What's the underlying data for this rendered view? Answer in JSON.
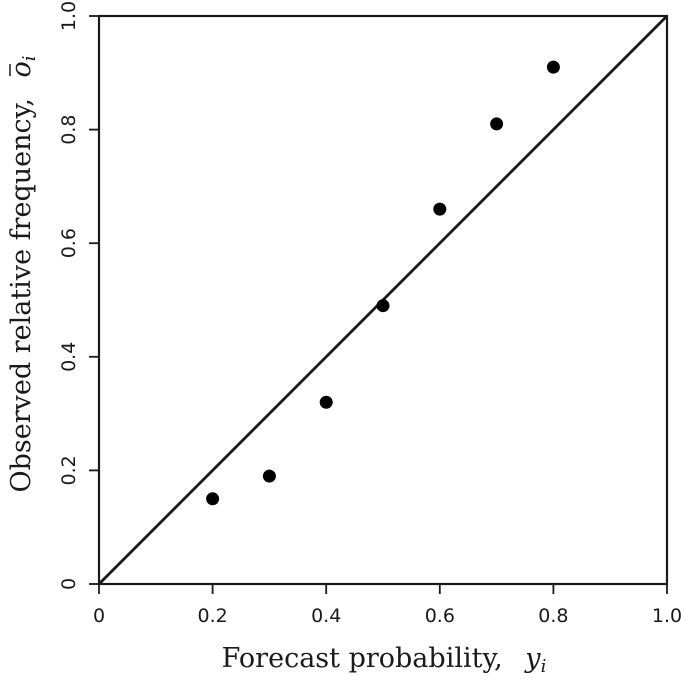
{
  "chart_data": {
    "type": "scatter",
    "xlabel": "Forecast probability,",
    "xlabel_symbol": "y",
    "xlabel_subscript": "i",
    "ylabel": "Observed relative frequency,",
    "ylabel_symbol": "o",
    "ylabel_subscript": "i",
    "xlim": [
      0,
      1.0
    ],
    "ylim": [
      0,
      1.0
    ],
    "x_ticks": [
      0,
      0.2,
      0.4,
      0.6,
      0.8,
      1.0
    ],
    "x_tick_labels": [
      "0",
      "0.2",
      "0.4",
      "0.6",
      "0.8",
      "1.0"
    ],
    "y_ticks": [
      0,
      0.2,
      0.4,
      0.6,
      0.8,
      1.0
    ],
    "y_tick_labels": [
      "0",
      "0.2",
      "0.4",
      "0.6",
      "0.8",
      "1.0"
    ],
    "grid": false,
    "reference_line": {
      "from": [
        0,
        0
      ],
      "to": [
        1,
        1
      ]
    },
    "points": [
      {
        "x": 0.2,
        "y": 0.15
      },
      {
        "x": 0.3,
        "y": 0.19
      },
      {
        "x": 0.4,
        "y": 0.32
      },
      {
        "x": 0.5,
        "y": 0.49
      },
      {
        "x": 0.6,
        "y": 0.66
      },
      {
        "x": 0.7,
        "y": 0.81
      },
      {
        "x": 0.8,
        "y": 0.91
      }
    ],
    "marker_color": "#000000"
  }
}
